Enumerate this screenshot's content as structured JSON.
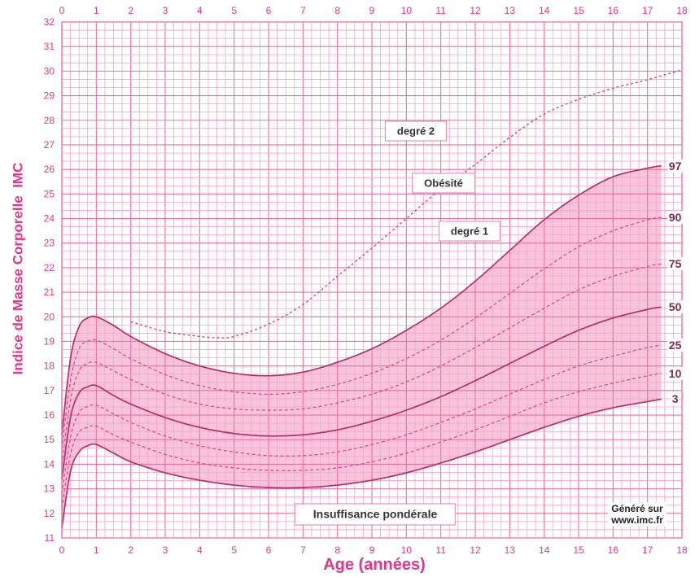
{
  "chart_data": {
    "type": "line",
    "xlabel": "Age (années)",
    "ylabel": "Indice de Masse Corporelle  IMC",
    "xlim": [
      0,
      18
    ],
    "ylim": [
      11,
      32
    ],
    "x_ticks": [
      0,
      1,
      2,
      3,
      4,
      5,
      6,
      7,
      8,
      9,
      10,
      11,
      12,
      13,
      14,
      15,
      16,
      17,
      18
    ],
    "y_ticks": [
      11,
      12,
      13,
      14,
      15,
      16,
      17,
      18,
      19,
      20,
      21,
      22,
      23,
      24,
      25,
      26,
      27,
      28,
      29,
      30,
      31,
      32
    ],
    "grid": true,
    "x": [
      0,
      0.25,
      0.5,
      0.75,
      1,
      1.5,
      2,
      3,
      4,
      5,
      6,
      7,
      8,
      9,
      10,
      11,
      12,
      13,
      14,
      15,
      16,
      17,
      17.4
    ],
    "series": [
      {
        "name": "97",
        "line": "solid",
        "values": [
          15.2,
          18.3,
          19.6,
          19.95,
          20.0,
          19.65,
          19.2,
          18.5,
          18.0,
          17.7,
          17.6,
          17.75,
          18.15,
          18.7,
          19.45,
          20.35,
          21.45,
          22.7,
          23.95,
          24.95,
          25.7,
          26.05,
          26.15
        ]
      },
      {
        "name": "90",
        "line": "dashed",
        "values": [
          14.6,
          17.4,
          18.7,
          19.0,
          19.05,
          18.7,
          18.3,
          17.65,
          17.2,
          16.95,
          16.85,
          16.95,
          17.25,
          17.7,
          18.3,
          19.05,
          19.95,
          20.95,
          21.95,
          22.85,
          23.5,
          23.95,
          24.05
        ]
      },
      {
        "name": "75",
        "line": "dashed",
        "values": [
          14.0,
          16.6,
          17.8,
          18.1,
          18.15,
          17.8,
          17.45,
          16.85,
          16.45,
          16.25,
          16.2,
          16.25,
          16.5,
          16.85,
          17.35,
          18.0,
          18.75,
          19.55,
          20.35,
          21.1,
          21.65,
          22.05,
          22.15
        ]
      },
      {
        "name": "50",
        "line": "solid",
        "values": [
          13.4,
          15.9,
          16.9,
          17.15,
          17.2,
          16.8,
          16.45,
          15.9,
          15.5,
          15.25,
          15.15,
          15.2,
          15.4,
          15.75,
          16.2,
          16.75,
          17.4,
          18.1,
          18.8,
          19.45,
          19.95,
          20.3,
          20.4
        ]
      },
      {
        "name": "25",
        "line": "dashed",
        "values": [
          12.8,
          15.1,
          16.1,
          16.35,
          16.4,
          16.05,
          15.7,
          15.15,
          14.75,
          14.5,
          14.35,
          14.35,
          14.5,
          14.8,
          15.2,
          15.7,
          16.25,
          16.85,
          17.45,
          18.0,
          18.4,
          18.75,
          18.85
        ]
      },
      {
        "name": "10",
        "line": "dashed",
        "values": [
          12.2,
          14.4,
          15.3,
          15.5,
          15.55,
          15.2,
          14.9,
          14.4,
          14.05,
          13.85,
          13.75,
          13.75,
          13.85,
          14.1,
          14.45,
          14.9,
          15.4,
          15.95,
          16.5,
          16.95,
          17.3,
          17.6,
          17.7
        ]
      },
      {
        "name": "3",
        "line": "solid",
        "values": [
          11.4,
          13.7,
          14.5,
          14.75,
          14.8,
          14.45,
          14.1,
          13.65,
          13.35,
          13.15,
          13.05,
          13.05,
          13.15,
          13.35,
          13.65,
          14.05,
          14.5,
          15.0,
          15.5,
          15.95,
          16.3,
          16.55,
          16.65
        ]
      }
    ],
    "shaded_band": [
      "3",
      "97"
    ],
    "extra_curves": [
      {
        "name": "degré 2",
        "line": "dashed",
        "x": [
          2,
          3,
          4,
          4.5,
          5,
          6,
          7,
          8,
          9,
          10,
          11,
          12,
          13,
          14,
          15,
          16,
          17,
          18
        ],
        "values": [
          19.8,
          19.4,
          19.2,
          19.15,
          19.2,
          19.7,
          20.5,
          21.65,
          22.8,
          24.0,
          25.2,
          26.2,
          27.3,
          28.25,
          28.85,
          29.3,
          29.65,
          30.05
        ]
      }
    ],
    "annotations": {
      "obesity": "Obésité",
      "grade1": "degré 1",
      "underweight": "Insuffisance pondérale"
    },
    "credit": {
      "line1": "Généré sur",
      "line2": "www.imc.fr"
    }
  },
  "colors": {
    "grid_minor": "#f5a6c9",
    "grid_major": "#eb6fa9",
    "band": "#f8c4db",
    "curve_solid": "#b42e6c",
    "curve_dashed": "#d2478a",
    "axis_text": "#e0368c",
    "percentile_label": "#7a2b55",
    "label_border": "#e57fb0"
  }
}
